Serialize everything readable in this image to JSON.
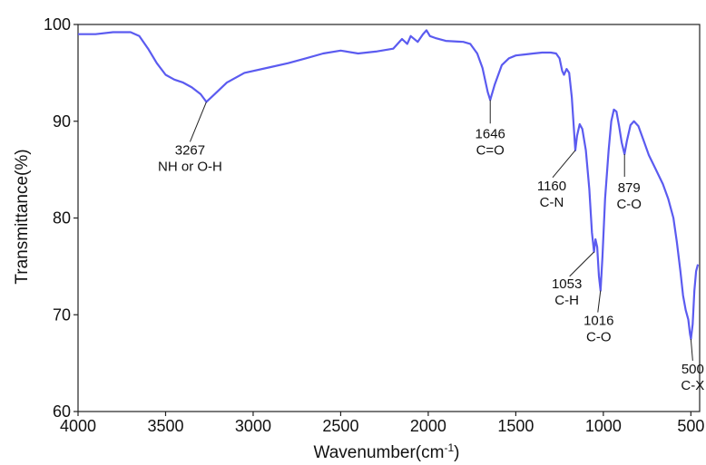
{
  "chart_data": {
    "type": "line",
    "xlabel_main": "Wavenumber(cm",
    "xlabel_sup": "-1",
    "xlabel_close": ")",
    "ylabel": "Transmittance(%)",
    "xlim": [
      4000,
      450
    ],
    "ylim": [
      60,
      100
    ],
    "x_reversed": true,
    "xticks": [
      4000,
      3500,
      3000,
      2500,
      2000,
      1500,
      1000,
      500
    ],
    "yticks": [
      60,
      70,
      80,
      90,
      100
    ],
    "grid": false,
    "line_color": "#5b5bf0",
    "series": [
      {
        "points": [
          [
            4000,
            99.0
          ],
          [
            3900,
            99.0
          ],
          [
            3800,
            99.2
          ],
          [
            3700,
            99.2
          ],
          [
            3650,
            98.8
          ],
          [
            3600,
            97.5
          ],
          [
            3550,
            96.0
          ],
          [
            3500,
            94.8
          ],
          [
            3450,
            94.3
          ],
          [
            3400,
            94.0
          ],
          [
            3350,
            93.5
          ],
          [
            3300,
            92.8
          ],
          [
            3267,
            92.0
          ],
          [
            3220,
            92.8
          ],
          [
            3150,
            94.0
          ],
          [
            3050,
            95.0
          ],
          [
            2900,
            95.6
          ],
          [
            2800,
            96.0
          ],
          [
            2700,
            96.5
          ],
          [
            2600,
            97.0
          ],
          [
            2500,
            97.3
          ],
          [
            2400,
            97.0
          ],
          [
            2300,
            97.2
          ],
          [
            2200,
            97.5
          ],
          [
            2150,
            98.5
          ],
          [
            2120,
            98.0
          ],
          [
            2100,
            98.8
          ],
          [
            2060,
            98.2
          ],
          [
            2030,
            99.0
          ],
          [
            2010,
            99.4
          ],
          [
            1990,
            98.8
          ],
          [
            1960,
            98.6
          ],
          [
            1900,
            98.3
          ],
          [
            1800,
            98.2
          ],
          [
            1760,
            98.0
          ],
          [
            1720,
            97.0
          ],
          [
            1690,
            95.5
          ],
          [
            1660,
            93.0
          ],
          [
            1646,
            92.2
          ],
          [
            1620,
            93.8
          ],
          [
            1580,
            95.8
          ],
          [
            1540,
            96.5
          ],
          [
            1500,
            96.8
          ],
          [
            1450,
            96.9
          ],
          [
            1400,
            97.0
          ],
          [
            1350,
            97.1
          ],
          [
            1300,
            97.1
          ],
          [
            1270,
            97.0
          ],
          [
            1250,
            96.5
          ],
          [
            1235,
            95.2
          ],
          [
            1225,
            94.8
          ],
          [
            1210,
            95.4
          ],
          [
            1195,
            95.0
          ],
          [
            1180,
            92.5
          ],
          [
            1160,
            87.0
          ],
          [
            1150,
            88.5
          ],
          [
            1135,
            89.7
          ],
          [
            1120,
            89.2
          ],
          [
            1100,
            87.0
          ],
          [
            1080,
            83.0
          ],
          [
            1065,
            78.5
          ],
          [
            1053,
            76.5
          ],
          [
            1045,
            77.8
          ],
          [
            1035,
            77.0
          ],
          [
            1025,
            74.0
          ],
          [
            1016,
            72.5
          ],
          [
            1005,
            76.0
          ],
          [
            990,
            82.0
          ],
          [
            970,
            87.0
          ],
          [
            955,
            90.0
          ],
          [
            940,
            91.2
          ],
          [
            925,
            91.0
          ],
          [
            910,
            89.5
          ],
          [
            895,
            87.8
          ],
          [
            879,
            86.6
          ],
          [
            865,
            88.0
          ],
          [
            845,
            89.6
          ],
          [
            825,
            90.0
          ],
          [
            800,
            89.5
          ],
          [
            770,
            88.0
          ],
          [
            740,
            86.5
          ],
          [
            700,
            85.0
          ],
          [
            660,
            83.5
          ],
          [
            630,
            82.0
          ],
          [
            600,
            80.0
          ],
          [
            580,
            77.5
          ],
          [
            560,
            74.5
          ],
          [
            545,
            72.0
          ],
          [
            530,
            70.5
          ],
          [
            515,
            69.5
          ],
          [
            505,
            68.0
          ],
          [
            500,
            67.5
          ],
          [
            490,
            69.0
          ],
          [
            480,
            72.5
          ],
          [
            470,
            74.5
          ],
          [
            460,
            75.2
          ]
        ]
      }
    ],
    "annotations": [
      {
        "wavenumber": "3267",
        "group": "NH or O-H",
        "x": 3267,
        "y": 92.0
      },
      {
        "wavenumber": "1646",
        "group": "C=O",
        "x": 1646,
        "y": 92.2
      },
      {
        "wavenumber": "1160",
        "group": "C-N",
        "x": 1160,
        "y": 87.0
      },
      {
        "wavenumber": "879",
        "group": "C-O",
        "x": 879,
        "y": 86.6
      },
      {
        "wavenumber": "1053",
        "group": "C-H",
        "x": 1053,
        "y": 76.5
      },
      {
        "wavenumber": "1016",
        "group": "C-O",
        "x": 1016,
        "y": 72.5
      },
      {
        "wavenumber": "500",
        "group": "C-X",
        "x": 500,
        "y": 67.5
      }
    ]
  }
}
